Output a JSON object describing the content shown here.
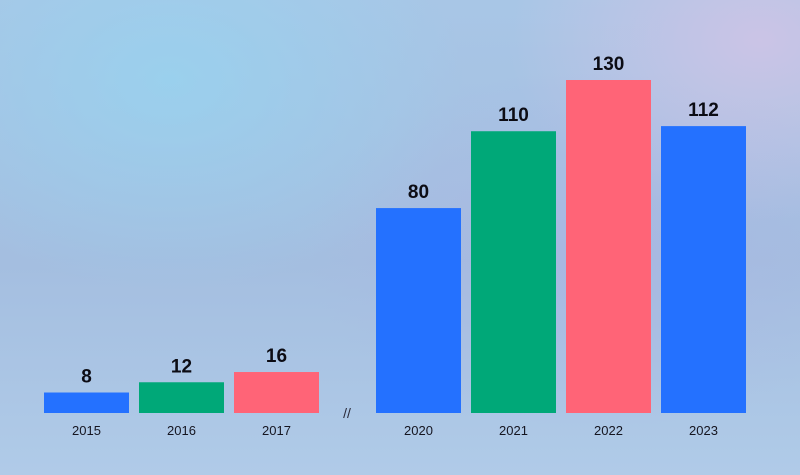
{
  "chart_data": {
    "type": "bar",
    "categories": [
      "2015",
      "2016",
      "2017",
      "2020",
      "2021",
      "2022",
      "2023"
    ],
    "values": [
      8,
      12,
      16,
      80,
      110,
      130,
      112
    ],
    "bar_colors": [
      "#2471ff",
      "#00a878",
      "#ff6477",
      "#2471ff",
      "#00a878",
      "#ff6477",
      "#2471ff"
    ],
    "ylim": [
      0,
      130
    ],
    "axis_break_label": "//",
    "axis_break_after_index": 2,
    "grid": false,
    "legend": "none"
  }
}
